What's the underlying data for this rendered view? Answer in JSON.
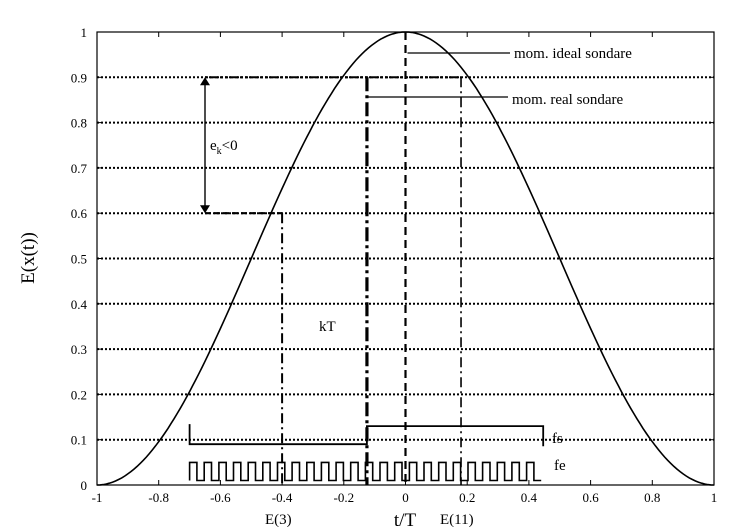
{
  "chart_data": {
    "type": "line",
    "title": "",
    "xlabel": "t/T",
    "ylabel": "E(x(t))",
    "xlim": [
      -1,
      1
    ],
    "ylim": [
      0,
      1
    ],
    "grid": "horizontal dotted",
    "xticks": [
      "-1",
      "-0.8",
      "-0.6",
      "-0.4",
      "-0.2",
      "0",
      "0.2",
      "0.4",
      "0.6",
      "0.8",
      "1"
    ],
    "xtick_values": [
      -1,
      -0.8,
      -0.6,
      -0.4,
      -0.2,
      0,
      0.2,
      0.4,
      0.6,
      0.8,
      1
    ],
    "yticks": [
      "0",
      "0.1",
      "0.2",
      "0.3",
      "0.4",
      "0.5",
      "0.6",
      "0.7",
      "0.8",
      "0.9",
      "1"
    ],
    "ytick_values": [
      0,
      0.1,
      0.2,
      0.3,
      0.4,
      0.5,
      0.6,
      0.7,
      0.8,
      0.9,
      1
    ],
    "curve": {
      "function": "cos^2(pi*t/(2T))",
      "x": [
        -1,
        -0.9,
        -0.8,
        -0.7,
        -0.6,
        -0.5,
        -0.4,
        -0.3,
        -0.2,
        -0.1,
        0,
        0.1,
        0.2,
        0.3,
        0.4,
        0.5,
        0.6,
        0.7,
        0.8,
        0.9,
        1
      ],
      "y": [
        0,
        0.024,
        0.095,
        0.206,
        0.345,
        0.5,
        0.655,
        0.794,
        0.905,
        0.976,
        1,
        0.976,
        0.905,
        0.794,
        0.655,
        0.5,
        0.345,
        0.206,
        0.095,
        0.024,
        0
      ]
    },
    "markers": {
      "ideal_sampling": {
        "x": 0,
        "label": "mom. ideal sondare"
      },
      "real_sampling": {
        "x": -0.125,
        "level": 0.9,
        "label": "mom. real sondare"
      },
      "e3": {
        "x": -0.4,
        "level": 0.6,
        "label": "E(3)"
      },
      "e11": {
        "x": 0.18,
        "level": 0.9,
        "label": "E(11)"
      }
    },
    "error_arrow": {
      "x": -0.65,
      "from": 0.6,
      "to": 0.9,
      "label": "e_k<0",
      "label_main": "e",
      "label_sub": "k",
      "label_tail": "<0"
    },
    "kT_label": {
      "x": -0.31,
      "y": 0.35,
      "text": "kT"
    },
    "fs_signal": {
      "label": "fs",
      "x_start": -0.7,
      "x_step": -0.125,
      "x_end": 0.44,
      "low": 0.09,
      "high": 0.13
    },
    "fe_signal": {
      "label": "fe",
      "x_start": -0.7,
      "x_end": 0.44,
      "low": 0.01,
      "high": 0.05,
      "cycles": 24
    }
  }
}
